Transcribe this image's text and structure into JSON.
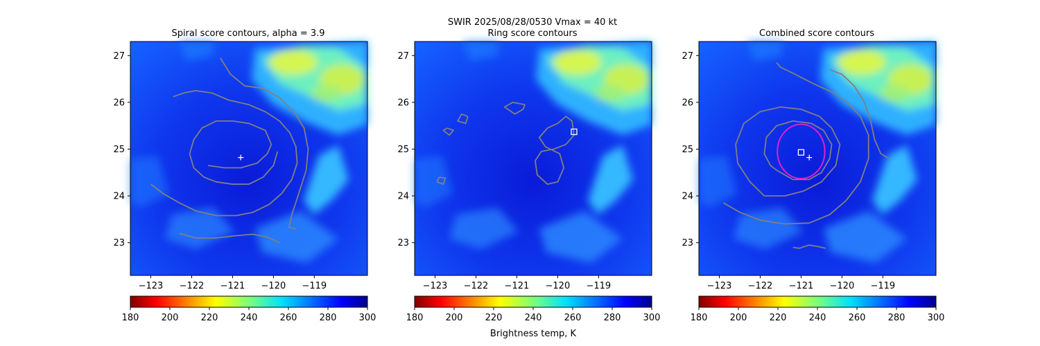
{
  "figure": {
    "suptitle": "SWIR  2025/08/28/0530    Vmax = 40 kt",
    "colorbar_label": "Brightness temp, K"
  },
  "chart_data": [
    {
      "type": "heatmap",
      "title": "Spiral score contours, alpha =  3.9",
      "xlim": [
        -123.5,
        -117.7
      ],
      "ylim": [
        22.3,
        27.3
      ],
      "xticks": [
        -123,
        -122,
        -121,
        -120,
        -119
      ],
      "xtick_labels": [
        "−123",
        "−122",
        "−121",
        "−120",
        "−119"
      ],
      "yticks": [
        23,
        24,
        25,
        26,
        27
      ],
      "ytick_labels": [
        "23",
        "24",
        "25",
        "26",
        "27"
      ],
      "colormap": "jet_r",
      "clim": [
        180,
        300
      ],
      "colorbar_ticks": [
        180,
        200,
        220,
        240,
        260,
        280,
        300
      ],
      "contour_color": "#808080",
      "contours": [
        {
          "name": "",
          "points": [
            [
              -123.0,
              24.25
            ],
            [
              -122.7,
              24.05
            ],
            [
              -122.3,
              23.85
            ],
            [
              -121.9,
              23.68
            ],
            [
              -121.4,
              23.58
            ],
            [
              -120.9,
              23.58
            ],
            [
              -120.5,
              23.65
            ],
            [
              -120.1,
              23.82
            ],
            [
              -119.8,
              24.05
            ],
            [
              -119.55,
              24.35
            ],
            [
              -119.42,
              24.7
            ],
            [
              -119.45,
              25.05
            ],
            [
              -119.6,
              25.35
            ],
            [
              -119.85,
              25.6
            ],
            [
              -120.2,
              25.8
            ],
            [
              -120.6,
              25.95
            ],
            [
              -121.1,
              26.05
            ],
            [
              -121.5,
              26.2
            ],
            [
              -121.9,
              26.25
            ],
            [
              -122.2,
              26.2
            ],
            [
              -122.45,
              26.12
            ]
          ]
        },
        {
          "name": "",
          "points": [
            [
              -121.6,
              24.65
            ],
            [
              -121.2,
              24.6
            ],
            [
              -120.8,
              24.6
            ],
            [
              -120.4,
              24.7
            ],
            [
              -120.15,
              24.9
            ],
            [
              -120.05,
              25.1
            ],
            [
              -120.2,
              25.4
            ],
            [
              -120.6,
              25.55
            ],
            [
              -121.0,
              25.6
            ],
            [
              -121.4,
              25.6
            ],
            [
              -121.75,
              25.45
            ],
            [
              -121.95,
              25.2
            ],
            [
              -122.05,
              24.9
            ],
            [
              -121.95,
              24.6
            ],
            [
              -121.7,
              24.4
            ],
            [
              -121.4,
              24.3
            ],
            [
              -121.0,
              24.25
            ],
            [
              -120.6,
              24.25
            ],
            [
              -120.25,
              24.4
            ],
            [
              -120.0,
              24.65
            ],
            [
              -119.9,
              24.95
            ]
          ]
        },
        {
          "name": "",
          "points": [
            [
              -121.3,
              26.95
            ],
            [
              -121.05,
              26.6
            ],
            [
              -120.7,
              26.35
            ],
            [
              -120.25,
              26.3
            ],
            [
              -119.85,
              26.1
            ],
            [
              -119.5,
              25.8
            ],
            [
              -119.25,
              25.45
            ],
            [
              -119.15,
              25.0
            ],
            [
              -119.2,
              24.55
            ],
            [
              -119.4,
              24.0
            ],
            [
              -119.55,
              23.6
            ],
            [
              -119.62,
              23.32
            ],
            [
              -119.45,
              23.3
            ]
          ]
        },
        {
          "name": "",
          "points": [
            [
              -122.3,
              23.2
            ],
            [
              -121.9,
              23.1
            ],
            [
              -121.4,
              23.1
            ],
            [
              -120.9,
              23.15
            ],
            [
              -120.5,
              23.18
            ],
            [
              -120.15,
              23.12
            ],
            [
              -119.85,
              23.0
            ]
          ]
        }
      ],
      "markers": [
        {
          "type": "plus",
          "x": -120.8,
          "y": 24.82
        }
      ]
    },
    {
      "type": "heatmap",
      "title": "Ring score contours",
      "xlim": [
        -123.5,
        -117.7
      ],
      "ylim": [
        22.3,
        27.3
      ],
      "xticks": [
        -123,
        -122,
        -121,
        -120,
        -119
      ],
      "xtick_labels": [
        "−123",
        "−122",
        "−121",
        "−120",
        "−119"
      ],
      "yticks": [
        23,
        24,
        25,
        26,
        27
      ],
      "ytick_labels": [
        "23",
        "24",
        "25",
        "26",
        "27"
      ],
      "colormap": "jet_r",
      "clim": [
        180,
        300
      ],
      "colorbar_ticks": [
        180,
        200,
        220,
        240,
        260,
        280,
        300
      ],
      "contour_color": "#808080",
      "contours": [
        {
          "name": "",
          "points": [
            [
              -120.0,
              25.55
            ],
            [
              -119.8,
              25.7
            ],
            [
              -119.65,
              25.6
            ],
            [
              -119.6,
              25.3
            ],
            [
              -119.8,
              25.1
            ],
            [
              -120.1,
              25.0
            ],
            [
              -120.4,
              24.95
            ],
            [
              -120.55,
              24.75
            ],
            [
              -120.5,
              24.45
            ],
            [
              -120.25,
              24.25
            ],
            [
              -120.0,
              24.3
            ],
            [
              -119.85,
              24.6
            ],
            [
              -119.95,
              24.9
            ],
            [
              -120.3,
              25.05
            ],
            [
              -120.45,
              25.25
            ],
            [
              -120.25,
              25.45
            ],
            [
              -120.0,
              25.55
            ]
          ]
        },
        {
          "name": "",
          "points": [
            [
              -120.8,
              25.95
            ],
            [
              -121.1,
              26.0
            ],
            [
              -121.3,
              25.9
            ],
            [
              -121.05,
              25.75
            ],
            [
              -120.85,
              25.85
            ],
            [
              -120.8,
              25.95
            ]
          ]
        },
        {
          "name": "",
          "points": [
            [
              -122.2,
              25.7
            ],
            [
              -122.35,
              25.75
            ],
            [
              -122.45,
              25.6
            ],
            [
              -122.25,
              25.55
            ],
            [
              -122.2,
              25.7
            ]
          ]
        },
        {
          "name": "",
          "points": [
            [
              -122.7,
              25.45
            ],
            [
              -122.8,
              25.4
            ],
            [
              -122.65,
              25.3
            ],
            [
              -122.55,
              25.4
            ],
            [
              -122.7,
              25.45
            ]
          ]
        },
        {
          "name": "",
          "points": [
            [
              -122.9,
              24.4
            ],
            [
              -122.95,
              24.3
            ],
            [
              -122.8,
              24.25
            ],
            [
              -122.75,
              24.38
            ],
            [
              -122.9,
              24.4
            ]
          ]
        }
      ],
      "markers": [
        {
          "type": "square",
          "x": -119.6,
          "y": 25.37
        }
      ]
    },
    {
      "type": "heatmap",
      "title": "Combined score contours",
      "xlim": [
        -123.5,
        -117.7
      ],
      "ylim": [
        22.3,
        27.3
      ],
      "xticks": [
        -123,
        -122,
        -121,
        -120,
        -119
      ],
      "xtick_labels": [
        "−123",
        "−122",
        "−121",
        "−120",
        "−119"
      ],
      "yticks": [
        23,
        24,
        25,
        26,
        27
      ],
      "ytick_labels": [
        "23",
        "24",
        "25",
        "26",
        "27"
      ],
      "colormap": "jet_r",
      "clim": [
        180,
        300
      ],
      "colorbar_ticks": [
        180,
        200,
        220,
        240,
        260,
        280,
        300
      ],
      "contour_color": "#808080",
      "contours": [
        {
          "name": "",
          "points": [
            [
              -122.9,
              23.85
            ],
            [
              -122.5,
              23.65
            ],
            [
              -122.0,
              23.48
            ],
            [
              -121.4,
              23.4
            ],
            [
              -120.8,
              23.42
            ],
            [
              -120.3,
              23.6
            ],
            [
              -119.9,
              23.9
            ],
            [
              -119.55,
              24.3
            ],
            [
              -119.35,
              24.8
            ],
            [
              -119.35,
              25.3
            ],
            [
              -119.55,
              25.7
            ],
            [
              -119.85,
              25.98
            ],
            [
              -120.2,
              26.2
            ],
            [
              -120.7,
              26.4
            ],
            [
              -121.15,
              26.6
            ],
            [
              -121.5,
              26.75
            ],
            [
              -121.6,
              26.85
            ]
          ]
        },
        {
          "name": "",
          "points": [
            [
              -121.9,
              24.0
            ],
            [
              -122.25,
              24.3
            ],
            [
              -122.55,
              24.7
            ],
            [
              -122.6,
              25.1
            ],
            [
              -122.4,
              25.55
            ],
            [
              -122.0,
              25.8
            ],
            [
              -121.5,
              25.9
            ],
            [
              -121.0,
              25.85
            ],
            [
              -120.55,
              25.7
            ],
            [
              -120.25,
              25.45
            ],
            [
              -120.05,
              25.1
            ],
            [
              -120.15,
              24.65
            ],
            [
              -120.5,
              24.3
            ],
            [
              -120.95,
              24.1
            ],
            [
              -121.4,
              24.0
            ],
            [
              -121.9,
              24.0
            ]
          ]
        },
        {
          "name": "",
          "points": [
            [
              -121.6,
              24.55
            ],
            [
              -121.2,
              24.35
            ],
            [
              -120.8,
              24.35
            ],
            [
              -120.5,
              24.5
            ],
            [
              -120.3,
              24.8
            ],
            [
              -120.25,
              25.1
            ],
            [
              -120.45,
              25.4
            ],
            [
              -120.75,
              25.55
            ],
            [
              -121.2,
              25.6
            ],
            [
              -121.6,
              25.5
            ],
            [
              -121.85,
              25.25
            ],
            [
              -121.9,
              24.9
            ],
            [
              -121.75,
              24.65
            ],
            [
              -121.6,
              24.55
            ]
          ]
        },
        {
          "name": "",
          "points": [
            [
              -120.3,
              26.7
            ],
            [
              -120.0,
              26.6
            ],
            [
              -119.7,
              26.35
            ],
            [
              -119.45,
              26.0
            ],
            [
              -119.3,
              25.6
            ],
            [
              -119.2,
              25.2
            ],
            [
              -119.05,
              24.9
            ],
            [
              -118.85,
              24.8
            ]
          ]
        },
        {
          "name": "",
          "points": [
            [
              -121.2,
              22.9
            ],
            [
              -121.05,
              22.88
            ],
            [
              -120.8,
              22.95
            ],
            [
              -120.6,
              22.92
            ],
            [
              -120.4,
              22.88
            ]
          ]
        }
      ],
      "rings": [
        {
          "cx": -121.0,
          "cy": 24.95,
          "r": 0.58,
          "color": "#e020d0"
        }
      ],
      "markers": [
        {
          "type": "plus",
          "x": -120.8,
          "y": 24.82
        },
        {
          "type": "square",
          "x": -121.0,
          "y": 24.93
        }
      ]
    }
  ]
}
